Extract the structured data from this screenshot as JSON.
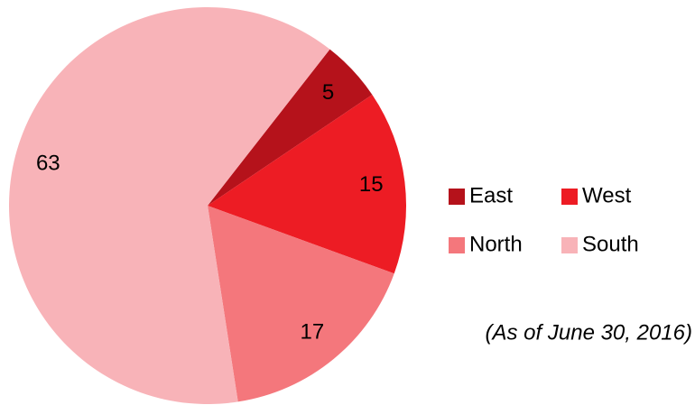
{
  "chart_data": {
    "type": "pie",
    "categories": [
      "East",
      "West",
      "North",
      "South"
    ],
    "values": [
      5,
      15,
      17,
      63
    ],
    "colors": [
      "#b5121b",
      "#ed1c24",
      "#f4777c",
      "#f8b3b8"
    ],
    "start_angle": 38,
    "legend": "right",
    "annotation": "(As of June 30, 2016)"
  }
}
